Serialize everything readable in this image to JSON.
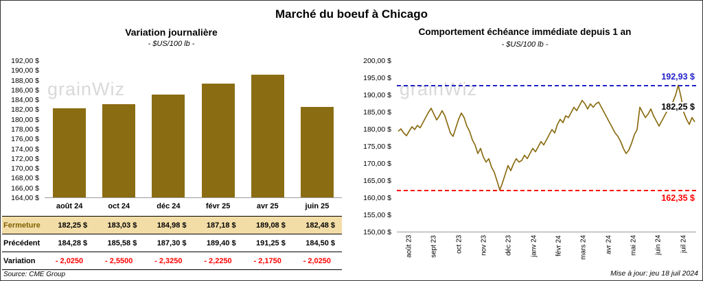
{
  "page": {
    "title": "Marché du boeuf à Chicago",
    "source": "Source: CME Group",
    "updated": "Mise à jour: jeu 18 juil 2024",
    "watermark": "grainWiz"
  },
  "colors": {
    "bar": "#8a6c12",
    "line": "#8a6c12",
    "max_line": "#1f1fc8",
    "min_line": "#ff0000",
    "fermeture_bg": "#f2dda7",
    "fermeture_label": "#7f6000",
    "variation_text": "#ff0000"
  },
  "chart_data": [
    {
      "type": "bar",
      "title": "Variation journalière",
      "subtitle": "- $US/100 lb -",
      "categories": [
        "août 24",
        "oct 24",
        "déc 24",
        "févr 25",
        "avr 25",
        "juin 25"
      ],
      "values": [
        182.25,
        183.03,
        184.98,
        187.18,
        189.08,
        182.48
      ],
      "ylim": [
        164,
        192
      ],
      "grid": false,
      "y_ticks": [
        "192,00 $",
        "190,00 $",
        "188,00 $",
        "186,00 $",
        "184,00 $",
        "182,00 $",
        "180,00 $",
        "178,00 $",
        "176,00 $",
        "174,00 $",
        "172,00 $",
        "170,00 $",
        "168,00 $",
        "166,00 $",
        "164,00 $"
      ],
      "table": {
        "rows": [
          {
            "label": "Fermeture",
            "values": [
              "182,25 $",
              "183,03 $",
              "184,98 $",
              "187,18 $",
              "189,08 $",
              "182,48 $"
            ]
          },
          {
            "label": "Précédent",
            "values": [
              "184,28 $",
              "185,58 $",
              "187,30 $",
              "189,40 $",
              "191,25 $",
              "184,50 $"
            ]
          },
          {
            "label": "Variation",
            "values": [
              "- 2,0250",
              "- 2,5500",
              "- 2,3250",
              "- 2,2250",
              "- 2,1750",
              "- 2,0250"
            ]
          }
        ]
      }
    },
    {
      "type": "line",
      "title": "Comportement échéance immédiate depuis 1 an",
      "subtitle": "- $US/100 lb -",
      "x_labels": [
        "août 23",
        "sept 23",
        "oct 23",
        "nov 23",
        "déc 23",
        "janv 24",
        "févr 24",
        "mars 24",
        "avr 24",
        "mai 24",
        "juin 24",
        "juil 24"
      ],
      "ylim": [
        150,
        200
      ],
      "grid": false,
      "y_ticks": [
        "200,00 $",
        "195,00 $",
        "190,00 $",
        "185,00 $",
        "180,00 $",
        "175,00 $",
        "170,00 $",
        "165,00 $",
        "160,00 $",
        "155,00 $",
        "150,00 $"
      ],
      "max_line": {
        "value": 192.93,
        "label": "192,93 $"
      },
      "min_line": {
        "value": 162.35,
        "label": "162,35 $"
      },
      "last_label": "182,25 $",
      "series": [
        179.5,
        180.2,
        179.0,
        178.2,
        179.5,
        180.8,
        180.0,
        181.2,
        180.5,
        182.0,
        183.5,
        185.0,
        186.2,
        184.5,
        182.8,
        184.0,
        185.5,
        184.0,
        181.5,
        179.0,
        178.0,
        180.5,
        183.0,
        184.8,
        183.5,
        181.0,
        179.5,
        177.0,
        175.5,
        173.0,
        174.5,
        172.0,
        170.5,
        171.5,
        169.0,
        167.5,
        165.0,
        162.35,
        164.5,
        167.0,
        169.5,
        168.0,
        170.0,
        171.5,
        170.5,
        171.0,
        172.5,
        171.5,
        173.0,
        174.5,
        173.5,
        175.0,
        176.5,
        175.5,
        177.0,
        178.5,
        180.0,
        179.0,
        181.5,
        183.0,
        182.0,
        184.0,
        183.5,
        185.0,
        186.5,
        185.5,
        187.0,
        188.5,
        187.5,
        186.0,
        187.5,
        186.5,
        187.5,
        188.0,
        186.5,
        185.0,
        183.5,
        182.0,
        180.5,
        179.0,
        178.0,
        176.5,
        174.5,
        173.0,
        174.0,
        176.0,
        178.5,
        180.0,
        186.5,
        185.0,
        183.5,
        184.5,
        186.0,
        184.0,
        182.5,
        181.0,
        182.5,
        184.0,
        185.5,
        186.5,
        188.0,
        190.0,
        192.93,
        189.5,
        185.0,
        183.0,
        181.5,
        183.5,
        182.25
      ]
    }
  ]
}
